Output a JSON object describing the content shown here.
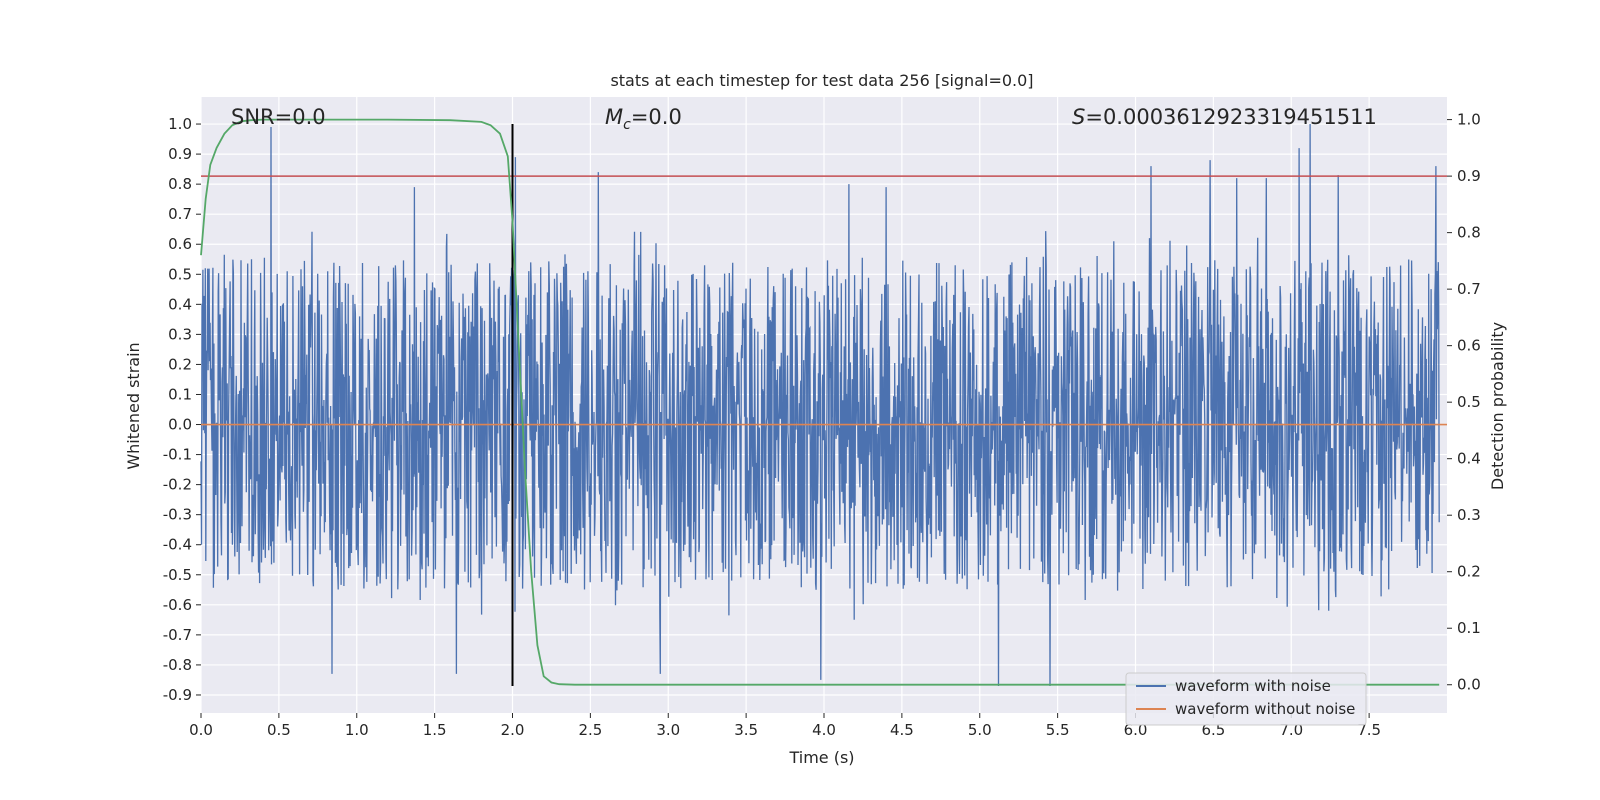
{
  "chart_data": {
    "type": "line",
    "title": "stats at each timestep for test data 256 [signal=0.0]",
    "xlabel": "Time (s)",
    "ylabel": "Whitened strain",
    "y2label": "Detection probability",
    "xlim": [
      0,
      8
    ],
    "ylim": [
      -0.96,
      1.09
    ],
    "y2lim": [
      -0.05,
      1.04
    ],
    "xticks": [
      "0.0",
      "0.5",
      "1.0",
      "1.5",
      "2.0",
      "2.5",
      "3.0",
      "3.5",
      "4.0",
      "4.5",
      "5.0",
      "5.5",
      "6.0",
      "6.5",
      "7.0",
      "7.5"
    ],
    "yticks": [
      "1.0",
      "0.9",
      "0.8",
      "0.7",
      "0.6",
      "0.5",
      "0.4",
      "0.3",
      "0.2",
      "0.1",
      "0.0",
      "-0.1",
      "-0.2",
      "-0.3",
      "-0.4",
      "-0.5",
      "-0.6",
      "-0.7",
      "-0.8",
      "-0.9"
    ],
    "y2ticks": [
      "1.0",
      "0.9",
      "0.8",
      "0.7",
      "0.6",
      "0.5",
      "0.4",
      "0.3",
      "0.2",
      "0.1",
      "0.0"
    ],
    "grid": true,
    "legend_position": "bottom-right",
    "annotations": {
      "snr": "SNR=0.0",
      "mc_symbol": "M",
      "mc_sub": "c",
      "mc_value": "=0.0",
      "s_symbol": "S",
      "s_value": "=0.0003612923319451511"
    },
    "series": [
      {
        "name": "waveform with noise",
        "color": "#4c72b0",
        "description_values": "dense whitened noise, mostly within ±0.35 with spikes",
        "spikes": [
          {
            "x": 0.45,
            "y": 0.99
          },
          {
            "x": 0.84,
            "y": -0.83
          },
          {
            "x": 1.37,
            "y": 0.79
          },
          {
            "x": 1.64,
            "y": -0.83
          },
          {
            "x": 2.02,
            "y": 0.89
          },
          {
            "x": 2.55,
            "y": 0.84
          },
          {
            "x": 2.95,
            "y": -0.83
          },
          {
            "x": 3.98,
            "y": -0.85
          },
          {
            "x": 4.16,
            "y": 0.8
          },
          {
            "x": 4.4,
            "y": 0.79
          },
          {
            "x": 5.12,
            "y": -0.87
          },
          {
            "x": 5.45,
            "y": -0.87
          },
          {
            "x": 6.1,
            "y": 0.86
          },
          {
            "x": 6.48,
            "y": 0.88
          },
          {
            "x": 6.65,
            "y": 0.82
          },
          {
            "x": 6.84,
            "y": 0.82
          },
          {
            "x": 7.05,
            "y": 0.92
          },
          {
            "x": 7.12,
            "y": 1.0
          },
          {
            "x": 7.3,
            "y": 0.83
          },
          {
            "x": 7.93,
            "y": 0.86
          }
        ]
      },
      {
        "name": "waveform without noise",
        "color": "#dd8452",
        "values_constant": 0.0
      },
      {
        "name": "detection probability",
        "axis": "right",
        "color": "#55a868",
        "x": [
          0.0,
          0.03,
          0.06,
          0.1,
          0.15,
          0.2,
          0.26,
          0.32,
          0.4,
          0.5,
          0.8,
          1.2,
          1.6,
          1.8,
          1.86,
          1.92,
          1.97,
          2.0,
          2.04,
          2.08,
          2.12,
          2.16,
          2.2,
          2.25,
          2.3,
          2.4,
          3.0,
          5.0,
          7.0,
          7.95
        ],
        "y": [
          0.76,
          0.86,
          0.92,
          0.95,
          0.975,
          0.99,
          0.997,
          0.999,
          1.0,
          1.0,
          1.0,
          1.0,
          0.999,
          0.996,
          0.99,
          0.975,
          0.935,
          0.82,
          0.6,
          0.38,
          0.2,
          0.07,
          0.015,
          0.004,
          0.001,
          0.0,
          0.0,
          0.0,
          0.0,
          0.0
        ]
      }
    ],
    "threshold_line": {
      "axis": "right",
      "value": 0.9,
      "color": "#c44e52"
    },
    "event_marker": {
      "x": 2.0,
      "y_from": -0.87,
      "y_to": 1.0,
      "color": "#000000"
    }
  }
}
